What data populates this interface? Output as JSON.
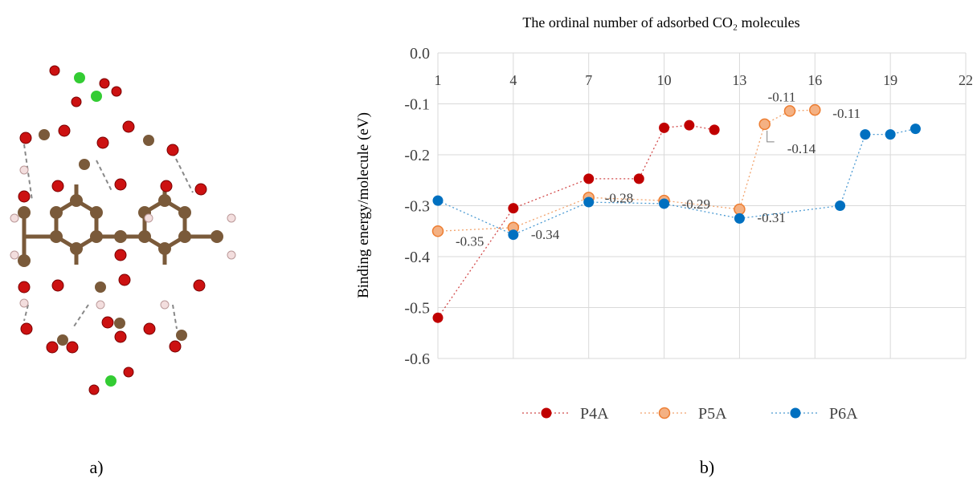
{
  "panel_labels": [
    "a)",
    "b)"
  ],
  "chart_data": {
    "type": "scatter-line",
    "title": "The ordinal number of adsorbed CO₂ molecules",
    "y_label": "Binding energy/molecule (eV)",
    "xlim": [
      1,
      22
    ],
    "xticks": [
      1,
      4,
      7,
      10,
      13,
      16,
      19,
      22
    ],
    "ylim": [
      -0.6,
      0
    ],
    "yticks": [
      {
        "value": 0,
        "label": "0.0"
      },
      -0.1,
      -0.2,
      -0.3,
      -0.4,
      -0.5,
      -0.6
    ],
    "grid": true,
    "x_axis_position": "top",
    "legend": "bottom",
    "series": [
      {
        "name": "P4A",
        "color": "#c00000",
        "x": [
          1,
          4,
          7,
          9,
          10,
          11,
          12
        ],
        "values": [
          -0.52,
          -0.305,
          -0.247,
          -0.247,
          -0.147,
          -0.142,
          -0.151
        ]
      },
      {
        "name": "P5A",
        "color": "#ed7d31",
        "fill": "#f4b183",
        "x": [
          1,
          4,
          7,
          10,
          13,
          14,
          15,
          16
        ],
        "values": [
          -0.35,
          -0.343,
          -0.284,
          -0.29,
          -0.307,
          -0.14,
          -0.114,
          -0.112
        ],
        "value_labels": [
          "-0.35",
          "-0.34",
          "-0.28",
          "-0.29",
          "-0.31",
          "-0.14",
          "-0.11",
          "-0.11"
        ]
      },
      {
        "name": "P6A",
        "color": "#0070c0",
        "x": [
          1,
          4,
          7,
          10,
          13,
          17,
          18,
          19,
          20
        ],
        "values": [
          -0.29,
          -0.357,
          -0.293,
          -0.296,
          -0.325,
          -0.3,
          -0.16,
          -0.16,
          -0.149
        ]
      }
    ]
  }
}
